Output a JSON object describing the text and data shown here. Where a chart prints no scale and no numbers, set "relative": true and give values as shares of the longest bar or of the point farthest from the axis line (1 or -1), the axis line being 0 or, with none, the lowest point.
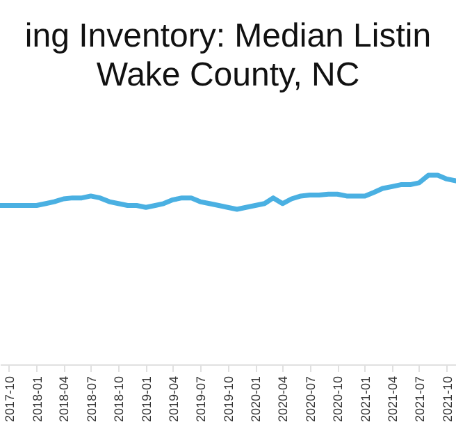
{
  "chart_data": {
    "type": "line",
    "title": "ing Inventory: Median Listin",
    "subtitle": "Wake County, NC",
    "relative": true,
    "x": [
      "2017-09",
      "2017-10",
      "2017-11",
      "2017-12",
      "2018-01",
      "2018-02",
      "2018-03",
      "2018-04",
      "2018-05",
      "2018-06",
      "2018-07",
      "2018-08",
      "2018-09",
      "2018-10",
      "2018-11",
      "2018-12",
      "2019-01",
      "2019-02",
      "2019-03",
      "2019-04",
      "2019-05",
      "2019-06",
      "2019-07",
      "2019-08",
      "2019-09",
      "2019-10",
      "2019-11",
      "2019-12",
      "2020-01",
      "2020-02",
      "2020-03",
      "2020-04",
      "2020-05",
      "2020-06",
      "2020-07",
      "2020-08",
      "2020-09",
      "2020-10",
      "2020-11",
      "2020-12",
      "2021-01",
      "2021-02",
      "2021-03",
      "2021-04",
      "2021-05",
      "2021-06",
      "2021-07",
      "2021-08",
      "2021-09",
      "2021-10",
      "2021-11"
    ],
    "series": [
      {
        "color": "#4ab0e2",
        "values": [
          0.84,
          0.84,
          0.84,
          0.84,
          0.84,
          0.85,
          0.86,
          0.875,
          0.88,
          0.88,
          0.89,
          0.88,
          0.86,
          0.85,
          0.84,
          0.84,
          0.83,
          0.84,
          0.85,
          0.87,
          0.88,
          0.88,
          0.86,
          0.85,
          0.84,
          0.83,
          0.82,
          0.83,
          0.84,
          0.85,
          0.88,
          0.85,
          0.875,
          0.89,
          0.895,
          0.895,
          0.9,
          0.9,
          0.89,
          0.89,
          0.89,
          0.91,
          0.93,
          0.94,
          0.95,
          0.95,
          0.96,
          1.0,
          1.0,
          0.98,
          0.97
        ]
      }
    ],
    "xlim": [
      "2017-09",
      "2021-11"
    ],
    "xticks": [
      "2017-10",
      "2018-01",
      "2018-04",
      "2018-07",
      "2018-10",
      "2019-01",
      "2019-04",
      "2019-07",
      "2019-10",
      "2020-01",
      "2020-04",
      "2020-07",
      "2020-10",
      "2021-01",
      "2021-04",
      "2021-07",
      "2021-10"
    ],
    "grid": false,
    "legend": false,
    "marker": "none",
    "line_style": "solid"
  }
}
